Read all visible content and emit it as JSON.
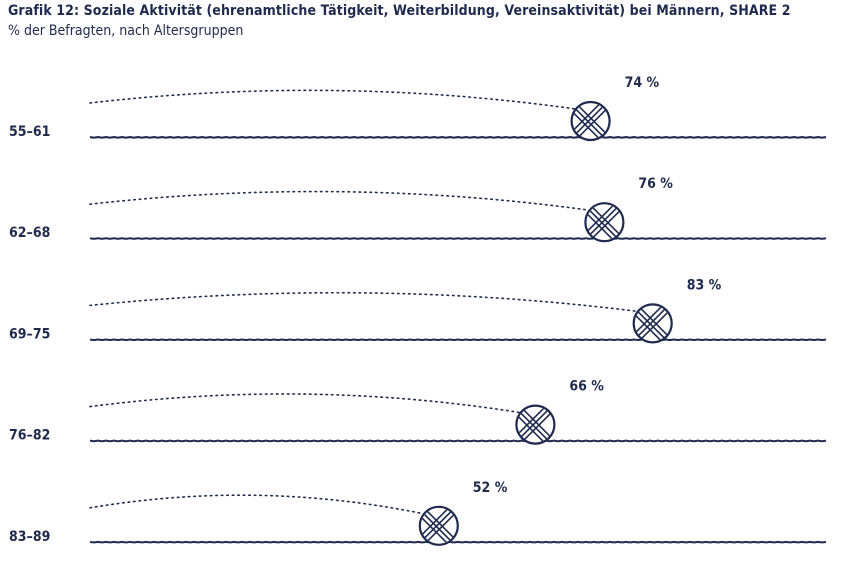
{
  "title": "Grafik 12: Soziale Aktivität (ehrenamtliche Tätigkeit, Weiterbildung, Vereinsaktivität) bei Männern, SHARE  2",
  "subtitle": "% der Befragten, nach Altersgruppen",
  "colors": {
    "ink": "#1f2a4e"
  },
  "chart_data": {
    "type": "bar",
    "categories": [
      "55–61",
      "62–68",
      "69–75",
      "76–82",
      "83–89"
    ],
    "values": [
      74,
      76,
      83,
      66,
      52
    ],
    "value_labels": [
      "74 %",
      "76 %",
      "83 %",
      "66 %",
      "52 %"
    ],
    "unit": "%",
    "xlim": [
      0,
      100
    ],
    "grid": false,
    "legend": "none",
    "marker": "ball-of-yarn"
  }
}
